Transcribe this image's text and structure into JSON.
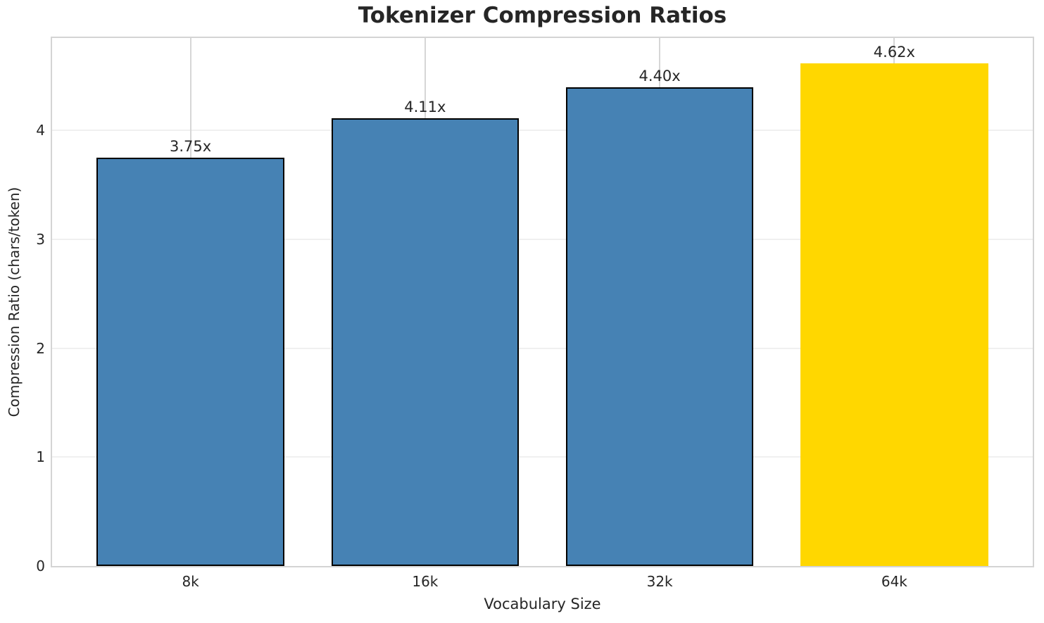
{
  "chart_data": {
    "type": "bar",
    "title": "Tokenizer Compression Ratios",
    "xlabel": "Vocabulary Size",
    "ylabel": "Compression Ratio (chars/token)",
    "categories": [
      "8k",
      "16k",
      "32k",
      "64k"
    ],
    "values": [
      3.75,
      4.11,
      4.4,
      4.62
    ],
    "bar_labels": [
      "3.75x",
      "4.11x",
      "4.40x",
      "4.62x"
    ],
    "bar_colors": [
      "#4682B4",
      "#4682B4",
      "#4682B4",
      "#FFD700"
    ],
    "bar_edge_colors": [
      "#000000",
      "#000000",
      "#000000",
      "none"
    ],
    "highlight_index": 3,
    "ylim": [
      0,
      4.85
    ],
    "yticks": [
      0,
      1,
      2,
      3,
      4
    ],
    "grid": true,
    "legend_position": "none",
    "colors": {
      "bar_default": "#4682B4",
      "bar_highlight": "#FFD700",
      "bar_edge": "#000000",
      "spine": "#d4d4d4",
      "grid_vertical": "#d6d6d6",
      "grid_horizontal": "#f0f0f0",
      "text": "#262626",
      "background": "#ffffff"
    }
  }
}
